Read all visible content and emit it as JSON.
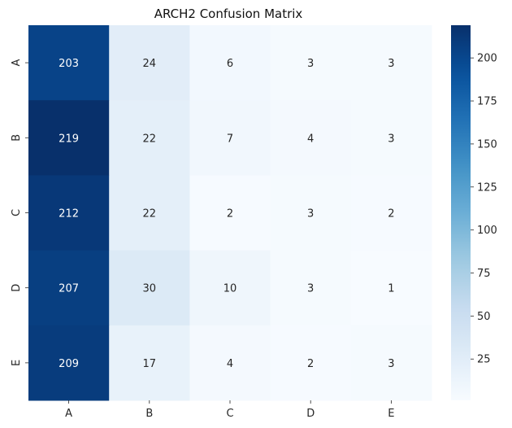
{
  "chart_data": {
    "type": "heatmap",
    "title": "ARCH2 Confusion Matrix",
    "x_categories": [
      "A",
      "B",
      "C",
      "D",
      "E"
    ],
    "y_categories": [
      "A",
      "B",
      "C",
      "D",
      "E"
    ],
    "values": [
      [
        203,
        24,
        6,
        3,
        3
      ],
      [
        219,
        22,
        7,
        4,
        3
      ],
      [
        212,
        22,
        2,
        3,
        2
      ],
      [
        207,
        30,
        10,
        3,
        1
      ],
      [
        209,
        17,
        4,
        2,
        3
      ]
    ],
    "colorbar": {
      "min": 1,
      "max": 219,
      "ticks": [
        25,
        50,
        75,
        100,
        125,
        150,
        175,
        200
      ],
      "colormap": "Blues"
    },
    "annotations": true,
    "grid": false
  }
}
